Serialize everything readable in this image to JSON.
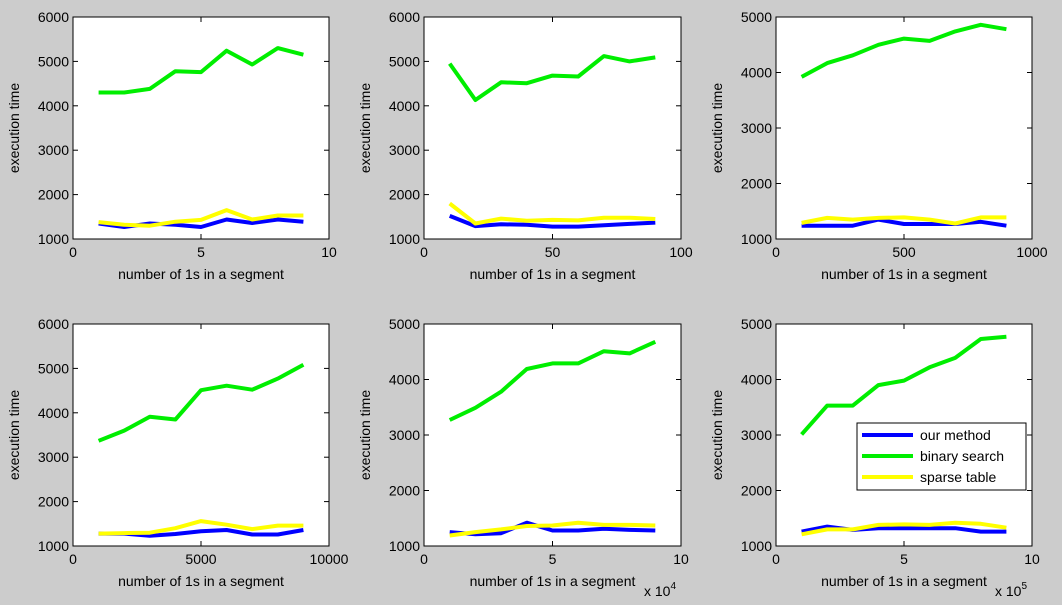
{
  "figure": {
    "background": "#cccccc",
    "colors": {
      "our_method": "#0000ff",
      "binary_search": "#00ee00",
      "sparse_table": "#ffff00"
    }
  },
  "legend": {
    "placement": "inside lower-right of bottom-right subplot",
    "entries": [
      "our method",
      "binary search",
      "sparse table"
    ]
  },
  "chart_data": [
    {
      "type": "line",
      "xlabel": "number of 1s in a segment",
      "ylabel": "execution time",
      "xlim": [
        0,
        10
      ],
      "ylim": [
        1000,
        6000
      ],
      "xticks": [
        0,
        5,
        10
      ],
      "xtick_labels": [
        "0",
        "5",
        "10"
      ],
      "yticks": [
        1000,
        2000,
        3000,
        4000,
        5000,
        6000
      ],
      "ytick_labels": [
        "1000",
        "2000",
        "3000",
        "4000",
        "5000",
        "6000"
      ],
      "exponent_label": "",
      "x": [
        1,
        2,
        3,
        4,
        5,
        6,
        7,
        8,
        9
      ],
      "series": [
        {
          "name": "our method",
          "values": [
            1350,
            1270,
            1350,
            1320,
            1270,
            1440,
            1360,
            1440,
            1390
          ]
        },
        {
          "name": "binary search",
          "values": [
            4300,
            4300,
            4380,
            4780,
            4760,
            5240,
            4930,
            5300,
            5150
          ]
        },
        {
          "name": "sparse table",
          "values": [
            1380,
            1320,
            1300,
            1390,
            1430,
            1650,
            1440,
            1530,
            1530
          ]
        }
      ]
    },
    {
      "type": "line",
      "xlabel": "number of 1s in a segment",
      "ylabel": "execution time",
      "xlim": [
        0,
        100
      ],
      "ylim": [
        1000,
        6000
      ],
      "xticks": [
        0,
        50,
        100
      ],
      "xtick_labels": [
        "0",
        "50",
        "100"
      ],
      "yticks": [
        1000,
        2000,
        3000,
        4000,
        5000,
        6000
      ],
      "ytick_labels": [
        "1000",
        "2000",
        "3000",
        "4000",
        "5000",
        "6000"
      ],
      "exponent_label": "",
      "x": [
        10,
        20,
        30,
        40,
        50,
        60,
        70,
        80,
        90
      ],
      "series": [
        {
          "name": "our method",
          "values": [
            1520,
            1290,
            1330,
            1320,
            1280,
            1280,
            1310,
            1340,
            1370
          ]
        },
        {
          "name": "binary search",
          "values": [
            4950,
            4130,
            4530,
            4510,
            4680,
            4660,
            5120,
            5000,
            5090
          ]
        },
        {
          "name": "sparse table",
          "values": [
            1800,
            1350,
            1460,
            1410,
            1430,
            1420,
            1480,
            1480,
            1450
          ]
        }
      ]
    },
    {
      "type": "line",
      "xlabel": "number of 1s in a segment",
      "ylabel": "execution time",
      "xlim": [
        0,
        1000
      ],
      "ylim": [
        1000,
        5000
      ],
      "xticks": [
        0,
        500,
        1000
      ],
      "xtick_labels": [
        "0",
        "500",
        "1000"
      ],
      "yticks": [
        1000,
        2000,
        3000,
        4000,
        5000
      ],
      "ytick_labels": [
        "1000",
        "2000",
        "3000",
        "4000",
        "5000"
      ],
      "exponent_label": "",
      "x": [
        100,
        200,
        300,
        400,
        500,
        600,
        700,
        800,
        900
      ],
      "series": [
        {
          "name": "our method",
          "values": [
            1240,
            1240,
            1240,
            1350,
            1270,
            1270,
            1270,
            1310,
            1240
          ]
        },
        {
          "name": "binary search",
          "values": [
            3920,
            4170,
            4310,
            4500,
            4610,
            4570,
            4740,
            4860,
            4780
          ]
        },
        {
          "name": "sparse table",
          "values": [
            1290,
            1380,
            1350,
            1380,
            1390,
            1350,
            1280,
            1390,
            1390
          ]
        }
      ]
    },
    {
      "type": "line",
      "xlabel": "number of 1s in a segment",
      "ylabel": "execution time",
      "xlim": [
        0,
        10000
      ],
      "ylim": [
        1000,
        6000
      ],
      "xticks": [
        0,
        5000,
        10000
      ],
      "xtick_labels": [
        "0",
        "5000",
        "10000"
      ],
      "yticks": [
        1000,
        2000,
        3000,
        4000,
        5000,
        6000
      ],
      "ytick_labels": [
        "1000",
        "2000",
        "3000",
        "4000",
        "5000",
        "6000"
      ],
      "exponent_label": "",
      "x": [
        1000,
        2000,
        3000,
        4000,
        5000,
        6000,
        7000,
        8000,
        9000
      ],
      "series": [
        {
          "name": "our method",
          "values": [
            1280,
            1280,
            1230,
            1270,
            1330,
            1360,
            1260,
            1260,
            1360
          ]
        },
        {
          "name": "binary search",
          "values": [
            3370,
            3600,
            3910,
            3850,
            4510,
            4610,
            4520,
            4770,
            5080
          ]
        },
        {
          "name": "sparse table",
          "values": [
            1280,
            1290,
            1300,
            1400,
            1560,
            1480,
            1380,
            1460,
            1460
          ]
        }
      ]
    },
    {
      "type": "line",
      "xlabel": "number of 1s in a segment",
      "ylabel": "execution time",
      "xlim": [
        0,
        10
      ],
      "ylim": [
        1000,
        5000
      ],
      "xticks": [
        0,
        5,
        10
      ],
      "xtick_labels": [
        "0",
        "5",
        "10"
      ],
      "yticks": [
        1000,
        2000,
        3000,
        4000,
        5000
      ],
      "ytick_labels": [
        "1000",
        "2000",
        "3000",
        "4000",
        "5000"
      ],
      "exponent_label": "x 10^4",
      "exponent_base": "x 10",
      "exponent_power": "4",
      "x": [
        1,
        2,
        3,
        4,
        5,
        6,
        7,
        8,
        9
      ],
      "series": [
        {
          "name": "our method",
          "values": [
            1250,
            1210,
            1230,
            1420,
            1280,
            1280,
            1310,
            1290,
            1280
          ]
        },
        {
          "name": "binary search",
          "values": [
            3270,
            3490,
            3780,
            4190,
            4290,
            4290,
            4510,
            4470,
            4680
          ]
        },
        {
          "name": "sparse table",
          "values": [
            1190,
            1250,
            1300,
            1360,
            1370,
            1420,
            1380,
            1380,
            1370
          ]
        }
      ]
    },
    {
      "type": "line",
      "xlabel": "number of 1s in a segment",
      "ylabel": "execution time",
      "xlim": [
        0,
        10
      ],
      "ylim": [
        1000,
        5000
      ],
      "xticks": [
        0,
        5,
        10
      ],
      "xtick_labels": [
        "0",
        "5",
        "10"
      ],
      "yticks": [
        1000,
        2000,
        3000,
        4000,
        5000
      ],
      "ytick_labels": [
        "1000",
        "2000",
        "3000",
        "4000",
        "5000"
      ],
      "exponent_label": "x 10^5",
      "exponent_base": "x 10",
      "exponent_power": "5",
      "x": [
        1,
        2,
        3,
        4,
        5,
        6,
        7,
        8,
        9
      ],
      "series": [
        {
          "name": "our method",
          "values": [
            1260,
            1350,
            1290,
            1320,
            1320,
            1320,
            1320,
            1260,
            1260
          ]
        },
        {
          "name": "binary search",
          "values": [
            3010,
            3530,
            3530,
            3900,
            3980,
            4220,
            4390,
            4730,
            4770
          ]
        },
        {
          "name": "sparse table",
          "values": [
            1210,
            1300,
            1300,
            1380,
            1390,
            1380,
            1420,
            1400,
            1330
          ]
        }
      ]
    }
  ]
}
